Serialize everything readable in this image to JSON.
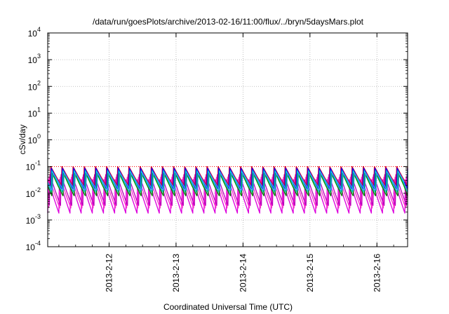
{
  "chart_data": {
    "type": "line",
    "title": "/data/run/goesPlots/archive/2013-02-16/11:00/flux/../bryn/5daysMars.plot",
    "xlabel": "Coordinated Universal Time (UTC)",
    "ylabel": "cSv/day",
    "yscale": "log",
    "ylim": [
      0.0001,
      10000
    ],
    "xlim": [
      "2013-02-11 02:00",
      "2013-02-16 11:00"
    ],
    "x_tick_labels": [
      "2013-2-12",
      "2013-2-13",
      "2013-2-14",
      "2013-2-15",
      "2013-2-16"
    ],
    "x_ticks": [
      "2013-02-12 00:00",
      "2013-02-13 00:00",
      "2013-02-14 00:00",
      "2013-02-15 00:00",
      "2013-02-16 00:00"
    ],
    "y_tick_labels": [
      {
        "base": "10",
        "exp": "-4",
        "value": 0.0001
      },
      {
        "base": "10",
        "exp": "-3",
        "value": 0.001
      },
      {
        "base": "10",
        "exp": "-2",
        "value": 0.01
      },
      {
        "base": "10",
        "exp": "-1",
        "value": 0.1
      },
      {
        "base": "10",
        "exp": "0",
        "value": 1
      },
      {
        "base": "10",
        "exp": "1",
        "value": 10
      },
      {
        "base": "10",
        "exp": "2",
        "value": 100
      },
      {
        "base": "10",
        "exp": "3",
        "value": 1000
      },
      {
        "base": "10",
        "exp": "4",
        "value": 10000
      }
    ],
    "grid": true,
    "reference_line": {
      "value": 0.1,
      "color": "#ff0000",
      "style": "dotted"
    },
    "series": [
      {
        "color": "#dd00dd",
        "peak": 0.033,
        "trough": 0.0018,
        "period_hours": 4,
        "offset_hours": 0.0
      },
      {
        "color": "#ff33cc",
        "peak": 0.04,
        "trough": 0.0028,
        "period_hours": 4,
        "offset_hours": 0.3
      },
      {
        "color": "#bb00bb",
        "peak": 0.05,
        "trough": 0.0035,
        "period_hours": 4,
        "offset_hours": 0.6
      },
      {
        "color": "#cc0033",
        "peak": 0.1,
        "trough": 0.02,
        "period_hours": 4,
        "offset_hours": 0.9
      },
      {
        "color": "#0000ff",
        "peak": 0.085,
        "trough": 0.015,
        "period_hours": 4,
        "offset_hours": 1.1
      },
      {
        "color": "#00cccc",
        "peak": 0.07,
        "trough": 0.011,
        "period_hours": 4,
        "offset_hours": 1.3
      },
      {
        "color": "#008800",
        "peak": 0.055,
        "trough": 0.008,
        "period_hours": 4,
        "offset_hours": 1.5
      },
      {
        "color": "#3399ff",
        "peak": 0.06,
        "trough": 0.013,
        "period_hours": 4,
        "offset_hours": 1.7
      }
    ]
  }
}
